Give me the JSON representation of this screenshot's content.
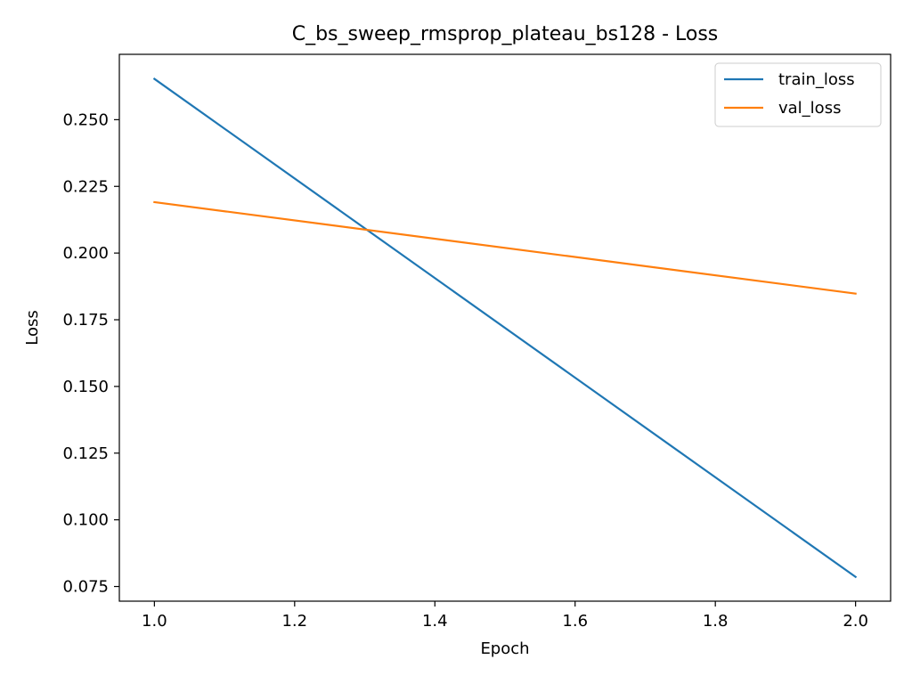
{
  "chart_data": {
    "type": "line",
    "title": "C_bs_sweep_rmsprop_plateau_bs128 - Loss",
    "xlabel": "Epoch",
    "ylabel": "Loss",
    "xlim": [
      0.95,
      2.05
    ],
    "ylim": [
      0.0695,
      0.2745
    ],
    "xticks": [
      1.0,
      1.2,
      1.4,
      1.6,
      1.8,
      2.0
    ],
    "xtick_labels": [
      "1.0",
      "1.2",
      "1.4",
      "1.6",
      "1.8",
      "2.0"
    ],
    "yticks": [
      0.075,
      0.1,
      0.125,
      0.15,
      0.175,
      0.2,
      0.225,
      0.25
    ],
    "ytick_labels": [
      "0.075",
      "0.100",
      "0.125",
      "0.150",
      "0.175",
      "0.200",
      "0.225",
      "0.250"
    ],
    "grid": false,
    "legend_position": "top-right",
    "x": [
      1.0,
      2.0
    ],
    "series": [
      {
        "name": "train_loss",
        "values": [
          0.2653,
          0.0786
        ],
        "color": "#1f77b4"
      },
      {
        "name": "val_loss",
        "values": [
          0.2191,
          0.1848
        ],
        "color": "#ff7f0e"
      }
    ]
  }
}
